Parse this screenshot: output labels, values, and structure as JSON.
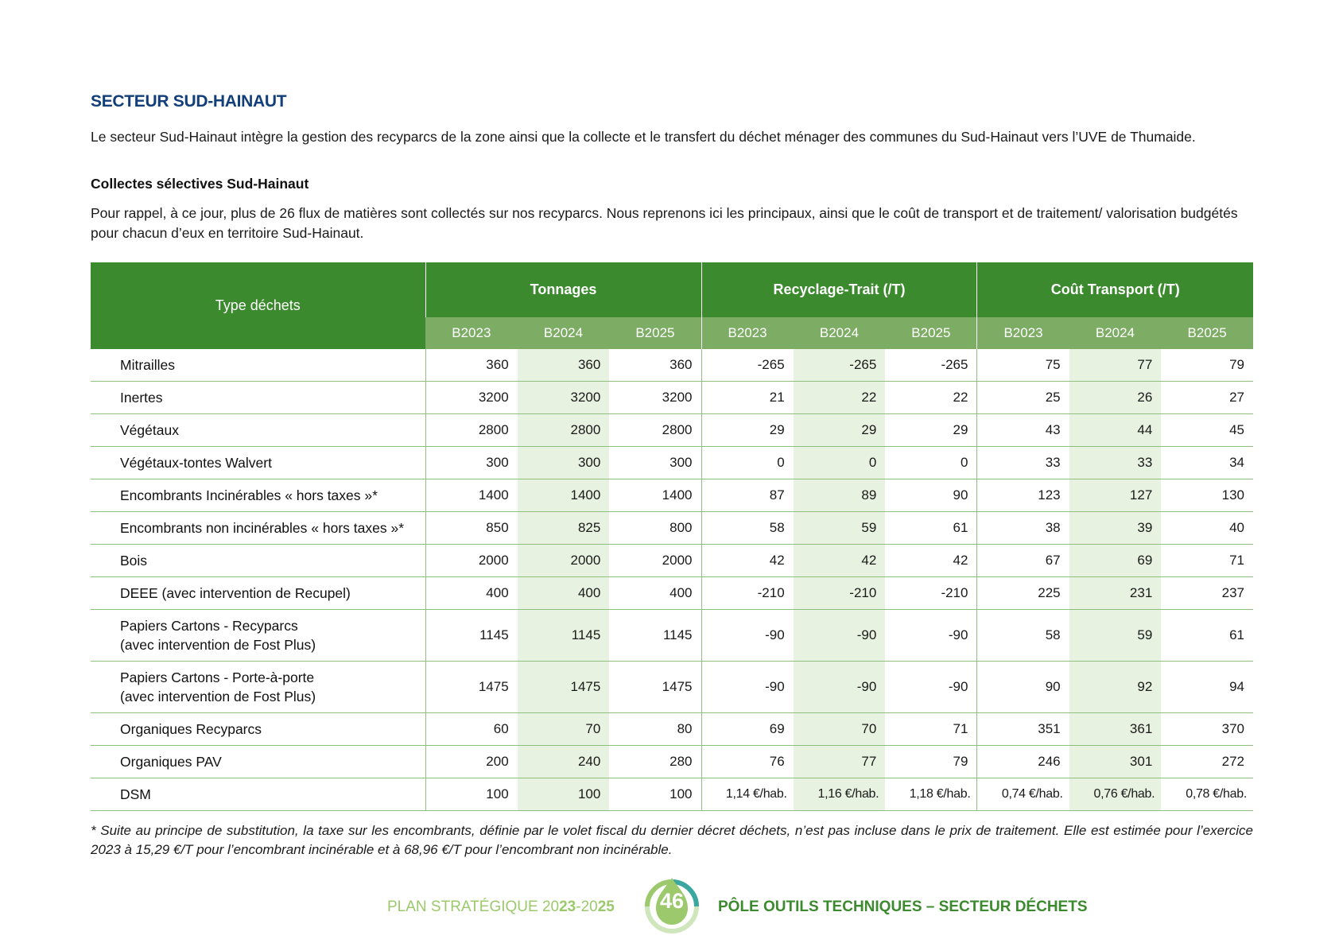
{
  "section_title": "SECTEUR SUD-HAINAUT",
  "intro": "Le secteur Sud-Hainaut intègre la gestion des recyparcs de la zone ainsi que la collecte et le transfert du déchet ménager des communes du Sud-Hainaut vers l’UVE de Thumaide.",
  "subheading": "Collectes sélectives Sud-Hainaut",
  "intro2": "Pour rappel, à ce jour, plus de 26 flux de matières sont collectés sur nos recyparcs. Nous reprenons ici les principaux, ainsi que le coût de transport et de traitement/ valorisation budgétés pour chacun d’eux en territoire Sud-Hainaut.",
  "table": {
    "type_header": "Type déchets",
    "groups": [
      "Tonnages",
      "Recyclage-Trait (/T)",
      "Coût Transport (/T)"
    ],
    "years": [
      "B2023",
      "B2024",
      "B2025",
      "B2023",
      "B2024",
      "B2025",
      "B2023",
      "B2024",
      "B2025"
    ],
    "rows": [
      {
        "label": [
          "Mitrailles"
        ],
        "values": [
          "360",
          "360",
          "360",
          "-265",
          "-265",
          "-265",
          "75",
          "77",
          "79"
        ]
      },
      {
        "label": [
          "Inertes"
        ],
        "values": [
          "3200",
          "3200",
          "3200",
          "21",
          "22",
          "22",
          "25",
          "26",
          "27"
        ]
      },
      {
        "label": [
          "Végétaux"
        ],
        "values": [
          "2800",
          "2800",
          "2800",
          "29",
          "29",
          "29",
          "43",
          "44",
          "45"
        ]
      },
      {
        "label": [
          "Végétaux-tontes Walvert"
        ],
        "values": [
          "300",
          "300",
          "300",
          "0",
          "0",
          "0",
          "33",
          "33",
          "34"
        ]
      },
      {
        "label": [
          "Encombrants Incinérables « hors taxes »*"
        ],
        "values": [
          "1400",
          "1400",
          "1400",
          "87",
          "89",
          "90",
          "123",
          "127",
          "130"
        ]
      },
      {
        "label": [
          "Encombrants non incinérables « hors taxes »*"
        ],
        "values": [
          "850",
          "825",
          "800",
          "58",
          "59",
          "61",
          "38",
          "39",
          "40"
        ]
      },
      {
        "label": [
          "Bois"
        ],
        "values": [
          "2000",
          "2000",
          "2000",
          "42",
          "42",
          "42",
          "67",
          "69",
          "71"
        ]
      },
      {
        "label": [
          "DEEE (avec intervention de Recupel)"
        ],
        "values": [
          "400",
          "400",
          "400",
          "-210",
          "-210",
          "-210",
          "225",
          "231",
          "237"
        ]
      },
      {
        "label": [
          "Papiers Cartons - Recyparcs",
          "(avec intervention de Fost Plus)"
        ],
        "values": [
          "1145",
          "1145",
          "1145",
          "-90",
          "-90",
          "-90",
          "58",
          "59",
          "61"
        ]
      },
      {
        "label": [
          "Papiers Cartons - Porte-à-porte",
          "(avec intervention de Fost Plus)"
        ],
        "values": [
          "1475",
          "1475",
          "1475",
          "-90",
          "-90",
          "-90",
          "90",
          "92",
          "94"
        ]
      },
      {
        "label": [
          "Organiques Recyparcs"
        ],
        "values": [
          "60",
          "70",
          "80",
          "69",
          "70",
          "71",
          "351",
          "361",
          "370"
        ]
      },
      {
        "label": [
          "Organiques PAV"
        ],
        "values": [
          "200",
          "240",
          "280",
          "76",
          "77",
          "79",
          "246",
          "301",
          "272"
        ]
      },
      {
        "label": [
          "DSM"
        ],
        "values": [
          "100",
          "100",
          "100",
          "1,14 €/hab.",
          "1,16 €/hab.",
          "1,18 €/hab.",
          "0,74 €/hab.",
          "0,76 €/hab.",
          "0,78 €/hab."
        ]
      }
    ]
  },
  "footnote": "* Suite au principe de substitution, la taxe sur les encombrants, définie par le volet fiscal du dernier décret déchets, n’est pas incluse dans le prix de traitement. Elle est estimée pour l’exercice 2023 à 15,29 €/T pour l’encombrant incinérable et à 68,96 €/T pour l’encombrant non incinérable.",
  "footer": {
    "left_prefix": "PLAN STRATÉGIQUE 20",
    "left_bold": "23",
    "left_mid": "-20",
    "left_bold2": "25",
    "page_number": "46",
    "right": "PÔLE OUTILS TECHNIQUES – SECTEUR DÉCHETS"
  },
  "colors": {
    "title_blue": "#123f7a",
    "header_green": "#3b8a2d",
    "subheader_green": "#7dac65",
    "alt_column": "#e8f2e0",
    "footer_light_green": "#9bc96b"
  }
}
